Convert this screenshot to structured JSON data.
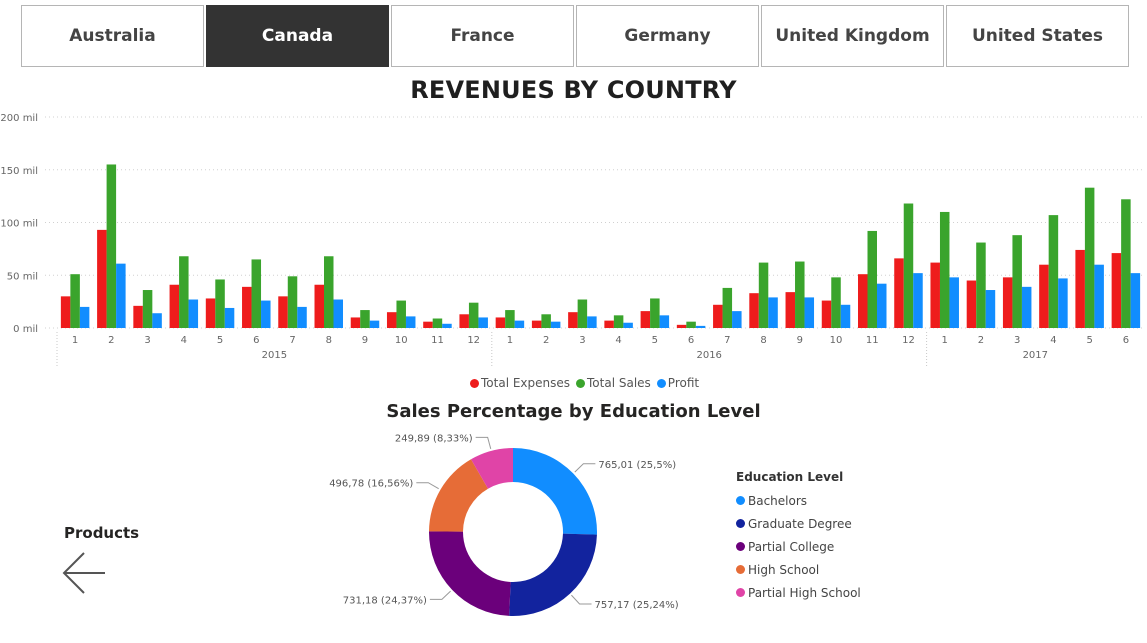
{
  "tabs": [
    {
      "label": "Australia",
      "active": false
    },
    {
      "label": "Canada",
      "active": true
    },
    {
      "label": "France",
      "active": false
    },
    {
      "label": "Germany",
      "active": false
    },
    {
      "label": "United Kingdom",
      "active": false
    },
    {
      "label": "United States",
      "active": false
    }
  ],
  "colors": {
    "expenses": "#ee1c1c",
    "sales": "#3aa42c",
    "profit": "#118dff",
    "tab_active": "#333333"
  },
  "chart_data": [
    {
      "type": "bar",
      "title": "REVENUES BY COUNTRY",
      "x_months": [
        "1",
        "2",
        "3",
        "4",
        "5",
        "6",
        "7",
        "8",
        "9",
        "10",
        "11",
        "12",
        "1",
        "2",
        "3",
        "4",
        "5",
        "6",
        "7",
        "8",
        "9",
        "10",
        "11",
        "12",
        "1",
        "2",
        "3",
        "4",
        "5",
        "6"
      ],
      "x_years": [
        "2015",
        "2016",
        "2017"
      ],
      "ytick_labels": [
        "0 mil",
        "50 mil",
        "100 mil",
        "150 mil",
        "200 mil"
      ],
      "ylim": [
        0,
        200
      ],
      "grid": true,
      "legend_position": "bottom",
      "series": [
        {
          "name": "Total Expenses",
          "values": [
            30,
            93,
            21,
            41,
            28,
            39,
            30,
            41,
            10,
            15,
            6,
            13,
            10,
            7,
            15,
            7,
            16,
            3,
            22,
            33,
            34,
            26,
            51,
            66,
            62,
            45,
            48,
            60,
            74,
            71
          ]
        },
        {
          "name": "Total Sales",
          "values": [
            51,
            155,
            36,
            68,
            46,
            65,
            49,
            68,
            17,
            26,
            9,
            24,
            17,
            13,
            27,
            12,
            28,
            6,
            38,
            62,
            63,
            48,
            92,
            118,
            110,
            81,
            88,
            107,
            133,
            122
          ]
        },
        {
          "name": "Profit",
          "values": [
            20,
            61,
            14,
            27,
            19,
            26,
            20,
            27,
            7,
            11,
            4,
            10,
            7,
            6,
            11,
            5,
            12,
            2,
            16,
            29,
            29,
            22,
            42,
            52,
            48,
            36,
            39,
            47,
            60,
            52
          ]
        }
      ]
    },
    {
      "type": "pie",
      "title": "Sales Percentage by Education Level",
      "legend_title": "Education Level",
      "slices": [
        {
          "name": "Bachelors",
          "value": 765.01,
          "label": "765,01 (25,5%)",
          "color": "#118dff"
        },
        {
          "name": "Graduate Degree",
          "value": 757.17,
          "label": "757,17 (25,24%)",
          "color": "#12239e"
        },
        {
          "name": "Partial College",
          "value": 731.18,
          "label": "731,18 (24,37%)",
          "color": "#6b007b"
        },
        {
          "name": "High School",
          "value": 496.78,
          "label": "496,78 (16,56%)",
          "color": "#e66c37"
        },
        {
          "name": "Partial High School",
          "value": 249.89,
          "label": "249,89 (8,33%)",
          "color": "#e044a7"
        }
      ]
    }
  ],
  "nav": {
    "label": "Products"
  }
}
